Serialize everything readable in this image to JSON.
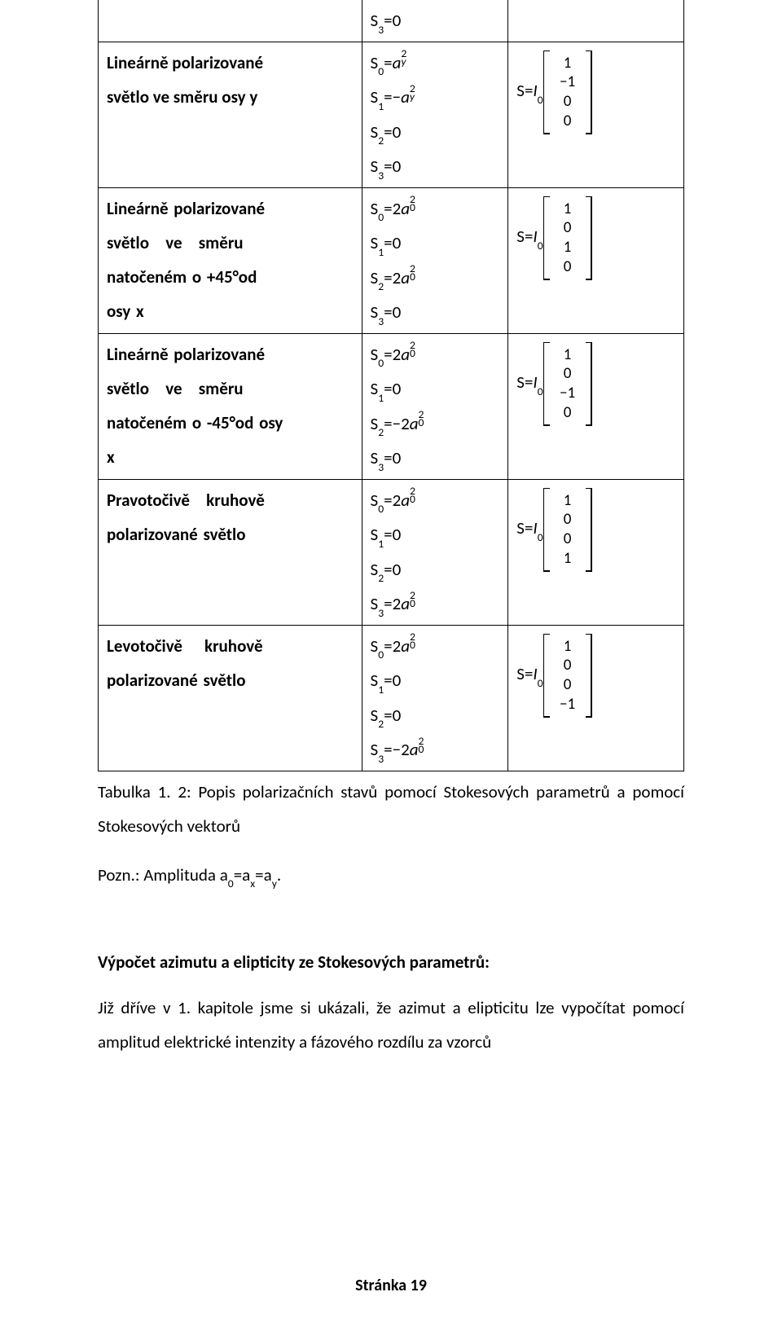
{
  "table": {
    "rows": [
      {
        "col1_lines": [
          ""
        ],
        "col1_justify": false,
        "col2_lines": [
          "S<sub>3</sub>=0"
        ],
        "col3_prefix": "",
        "vector": null,
        "top_open": true
      },
      {
        "col1_lines": [
          "Lineárně polarizované",
          "světlo ve směru osy y"
        ],
        "col1_justify": true,
        "col2_lines": [
          "S<sub>0</sub>=<span class='it'>a</span><span class='subsup'><span class='ss-sup'>2</span><span class='ss-sub it'>y</span></span>",
          "S<sub>1</sub>=<span class='minus'>−</span><span class='it'>a</span><span class='subsup'><span class='ss-sup'>2</span><span class='ss-sub it'>y</span></span>",
          "S<sub>2</sub>=0",
          "S<sub>3</sub>=0"
        ],
        "col3_prefix": "S=<span class='it'>I</span><sub>0</sub>",
        "vector": [
          "1",
          "−1",
          "0",
          "0"
        ]
      },
      {
        "col1_lines": [
          "Lineárně polarizované",
          "světlo&nbsp;&nbsp;&nbsp;ve&nbsp;&nbsp;&nbsp;směru",
          "natočeném o +45°od",
          "osy x"
        ],
        "col1_justify": false,
        "col2_lines": [
          "S<sub>0</sub>=2<span class='it'>a</span><span class='subsup'><span class='ss-sup'>2</span><span class='ss-sub'>0</span></span>",
          "S<sub>1</sub>=0",
          "S<sub>2</sub>=2<span class='it'>a</span><span class='subsup'><span class='ss-sup'>2</span><span class='ss-sub'>0</span></span>",
          "S<sub>3</sub>=0"
        ],
        "col3_prefix": "S=<span class='it'>I</span><sub>0</sub>",
        "vector": [
          "1",
          "0",
          "1",
          "0"
        ]
      },
      {
        "col1_lines": [
          "Lineárně polarizované",
          "světlo&nbsp;&nbsp;&nbsp;ve&nbsp;&nbsp;&nbsp;směru",
          "natočeném o -45°od osy",
          "x"
        ],
        "col1_justify": false,
        "col2_lines": [
          "S<sub>0</sub>=2<span class='it'>a</span><span class='subsup'><span class='ss-sup'>2</span><span class='ss-sub'>0</span></span>",
          "S<sub>1</sub>=0",
          "S<sub>2</sub>=<span class='minus'>−</span>2<span class='it'>a</span><span class='subsup'><span class='ss-sup'>2</span><span class='ss-sub'>0</span></span>",
          "S<sub>3</sub>=0"
        ],
        "col3_prefix": "S=<span class='it'>I</span><sub>0</sub>",
        "vector": [
          "1",
          "0",
          "−1",
          "0"
        ]
      },
      {
        "col1_lines": [
          "Pravotočivě&nbsp;&nbsp;&nbsp;kruhově",
          "polarizované světlo"
        ],
        "col1_justify": false,
        "col2_lines": [
          "S<sub>0</sub>=2<span class='it'>a</span><span class='subsup'><span class='ss-sup'>2</span><span class='ss-sub'>0</span></span>",
          "S<sub>1</sub>=0",
          "S<sub>2</sub>=0",
          "S<sub>3</sub>=2<span class='it'>a</span><span class='subsup'><span class='ss-sup'>2</span><span class='ss-sub'>0</span></span>"
        ],
        "col3_prefix": "S=<span class='it'>I</span><sub>0</sub>",
        "vector": [
          "1",
          "0",
          "0",
          "1"
        ]
      },
      {
        "col1_lines": [
          "Levotočivě&nbsp;&nbsp;&nbsp;&nbsp;kruhově",
          "polarizované světlo"
        ],
        "col1_justify": false,
        "col2_lines": [
          "S<sub>0</sub>=2<span class='it'>a</span><span class='subsup'><span class='ss-sup'>2</span><span class='ss-sub'>0</span></span>",
          "S<sub>1</sub>=0",
          "S<sub>2</sub>=0",
          "S<sub>3</sub>=<span class='minus'>−</span>2<span class='it'>a</span><span class='subsup'><span class='ss-sup'>2</span><span class='ss-sub'>0</span></span>"
        ],
        "col3_prefix": "S=<span class='it'>I</span><sub>0</sub>",
        "vector": [
          "1",
          "0",
          "0",
          "−1"
        ]
      }
    ]
  },
  "caption": "Tabulka 1. 2: Popis polarizačních stavů pomocí Stokesových parametrů a pomocí Stokesových vektorů",
  "pozn": "Pozn.: Amplituda a<sub>0</sub>=a<sub>x</sub>=a<sub>y</sub>.",
  "section_head": "Výpočet azimutu a elipticity ze Stokesových parametrů:",
  "body_para": "Již dříve v 1. kapitole jsme si ukázali, že azimut a elipticitu lze vypočítat pomocí amplitud elektrické intenzity a fázového rozdílu za vzorců",
  "footer": "Stránka 19"
}
